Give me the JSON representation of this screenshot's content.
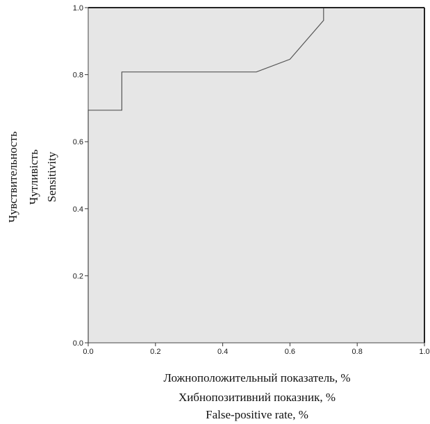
{
  "chart_data": {
    "type": "line",
    "title": "",
    "xlabel": [
      "Ложноположительный показатель, %",
      "Хибнопозитивний показник, %",
      "False-positive rate, %"
    ],
    "ylabel": [
      "Чувствительность",
      "Чутливість",
      "Sensitivity"
    ],
    "xlim": [
      0,
      1
    ],
    "ylim": [
      0,
      1
    ],
    "x_ticks": [
      "0.0",
      "0.2",
      "0.4",
      "0.6",
      "0.8",
      "1.0"
    ],
    "y_ticks": [
      "0.0",
      "0.2",
      "0.4",
      "0.6",
      "0.8",
      "1.0"
    ],
    "grid": false,
    "legend": "none",
    "plot_background": "#e6e6e6",
    "line_color": "#555555",
    "series": [
      {
        "x": [
          0.0,
          0.0,
          0.1,
          0.1,
          0.5,
          0.6,
          0.7,
          0.7,
          1.0
        ],
        "y": [
          0.0,
          0.694,
          0.694,
          0.808,
          0.808,
          0.846,
          0.962,
          1.0,
          1.0
        ]
      }
    ]
  }
}
